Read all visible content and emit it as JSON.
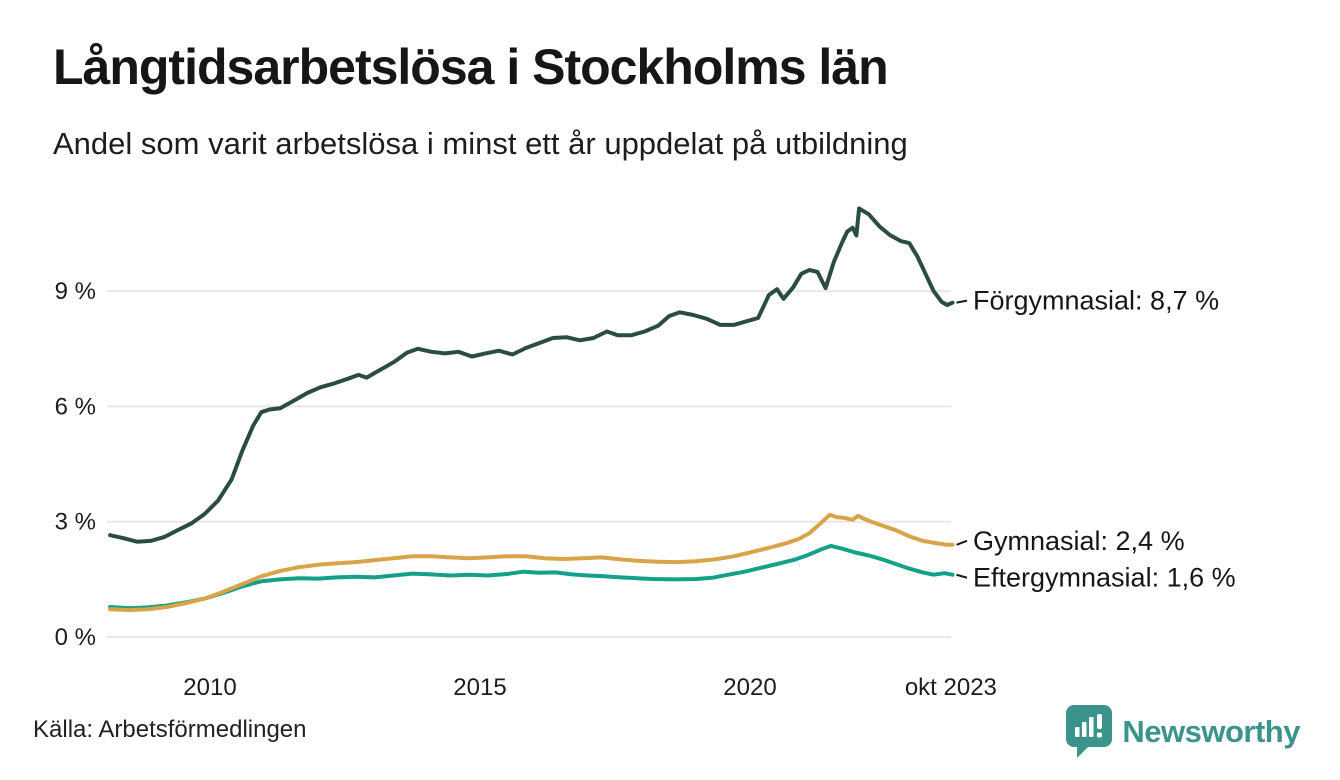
{
  "header": {
    "title": "Långtidsarbetslösa i Stockholms län",
    "subtitle": "Andel som varit arbetslösa i minst ett år uppdelat på utbildning"
  },
  "footer": {
    "source": "Källa: Arbetsförmedlingen",
    "logo_text": "Newsworthy"
  },
  "colors": {
    "background": "#ffffff",
    "text": "#1a1a1a",
    "grid": "#e8e8e8",
    "brand_teal": "#3b948b",
    "series_forgymnasial": "#2a4c45",
    "series_gymnasial": "#d7a44a",
    "series_eftergymnasial": "#14a189"
  },
  "chart_data": {
    "type": "line",
    "title": "Långtidsarbetslösa i Stockholms län",
    "subtitle": "Andel som varit arbetslösa i minst ett år uppdelat på utbildning",
    "grid": true,
    "legend_position": "end-labels-right",
    "x_axis": {
      "unit": "year",
      "range": [
        2008.15,
        2023.75
      ],
      "ticks": [
        {
          "label": "2010",
          "year": 2010
        },
        {
          "label": "2015",
          "year": 2015
        },
        {
          "label": "2020",
          "year": 2020
        },
        {
          "label": "okt 2023",
          "year": 2023.72
        }
      ]
    },
    "y_axis": {
      "unit": "%",
      "range": [
        0,
        11.6
      ],
      "ticks": [
        {
          "label": "0 %",
          "value": 0
        },
        {
          "label": "3 %",
          "value": 3
        },
        {
          "label": "6 %",
          "value": 6
        },
        {
          "label": "9 %",
          "value": 9
        }
      ]
    },
    "series": [
      {
        "name": "Eftergymnasial",
        "end_label": "Eftergymnasial: 1,6 %",
        "end_value": "1,6 %",
        "color": "#14a189",
        "points": [
          [
            2008.15,
            0.78
          ],
          [
            2008.5,
            0.75
          ],
          [
            2008.85,
            0.77
          ],
          [
            2009.2,
            0.82
          ],
          [
            2009.55,
            0.9
          ],
          [
            2009.9,
            1.0
          ],
          [
            2010.25,
            1.15
          ],
          [
            2010.6,
            1.32
          ],
          [
            2010.95,
            1.45
          ],
          [
            2011.3,
            1.5
          ],
          [
            2011.65,
            1.53
          ],
          [
            2012.0,
            1.52
          ],
          [
            2012.35,
            1.55
          ],
          [
            2012.7,
            1.57
          ],
          [
            2013.05,
            1.55
          ],
          [
            2013.4,
            1.6
          ],
          [
            2013.75,
            1.65
          ],
          [
            2014.1,
            1.63
          ],
          [
            2014.45,
            1.6
          ],
          [
            2014.8,
            1.62
          ],
          [
            2015.15,
            1.6
          ],
          [
            2015.5,
            1.64
          ],
          [
            2015.8,
            1.7
          ],
          [
            2016.1,
            1.67
          ],
          [
            2016.4,
            1.68
          ],
          [
            2016.7,
            1.63
          ],
          [
            2017.0,
            1.6
          ],
          [
            2017.3,
            1.58
          ],
          [
            2017.6,
            1.55
          ],
          [
            2017.9,
            1.53
          ],
          [
            2018.2,
            1.51
          ],
          [
            2018.6,
            1.5
          ],
          [
            2019.0,
            1.51
          ],
          [
            2019.3,
            1.54
          ],
          [
            2019.6,
            1.62
          ],
          [
            2019.9,
            1.7
          ],
          [
            2020.2,
            1.8
          ],
          [
            2020.5,
            1.9
          ],
          [
            2020.8,
            2.0
          ],
          [
            2021.05,
            2.12
          ],
          [
            2021.3,
            2.27
          ],
          [
            2021.5,
            2.37
          ],
          [
            2021.7,
            2.3
          ],
          [
            2021.95,
            2.2
          ],
          [
            2022.2,
            2.12
          ],
          [
            2022.45,
            2.02
          ],
          [
            2022.7,
            1.9
          ],
          [
            2022.95,
            1.78
          ],
          [
            2023.2,
            1.68
          ],
          [
            2023.4,
            1.62
          ],
          [
            2023.6,
            1.66
          ],
          [
            2023.75,
            1.62
          ]
        ]
      },
      {
        "name": "Gymnasial",
        "end_label": "Gymnasial: 2,4 %",
        "end_value": "2,4 %",
        "color": "#d7a44a",
        "points": [
          [
            2008.15,
            0.72
          ],
          [
            2008.5,
            0.7
          ],
          [
            2008.85,
            0.72
          ],
          [
            2009.2,
            0.78
          ],
          [
            2009.55,
            0.88
          ],
          [
            2009.9,
            1.0
          ],
          [
            2010.25,
            1.18
          ],
          [
            2010.6,
            1.38
          ],
          [
            2010.95,
            1.58
          ],
          [
            2011.3,
            1.72
          ],
          [
            2011.65,
            1.82
          ],
          [
            2012.0,
            1.88
          ],
          [
            2012.35,
            1.92
          ],
          [
            2012.7,
            1.95
          ],
          [
            2013.05,
            2.0
          ],
          [
            2013.4,
            2.05
          ],
          [
            2013.75,
            2.1
          ],
          [
            2014.1,
            2.1
          ],
          [
            2014.45,
            2.07
          ],
          [
            2014.8,
            2.05
          ],
          [
            2015.15,
            2.07
          ],
          [
            2015.5,
            2.1
          ],
          [
            2015.85,
            2.1
          ],
          [
            2016.2,
            2.05
          ],
          [
            2016.55,
            2.03
          ],
          [
            2016.9,
            2.05
          ],
          [
            2017.25,
            2.07
          ],
          [
            2017.6,
            2.02
          ],
          [
            2017.95,
            1.98
          ],
          [
            2018.3,
            1.96
          ],
          [
            2018.65,
            1.95
          ],
          [
            2019.0,
            1.97
          ],
          [
            2019.35,
            2.02
          ],
          [
            2019.7,
            2.1
          ],
          [
            2020.0,
            2.2
          ],
          [
            2020.35,
            2.32
          ],
          [
            2020.7,
            2.45
          ],
          [
            2020.9,
            2.55
          ],
          [
            2021.1,
            2.7
          ],
          [
            2021.3,
            2.95
          ],
          [
            2021.48,
            3.18
          ],
          [
            2021.6,
            3.12
          ],
          [
            2021.75,
            3.1
          ],
          [
            2021.9,
            3.05
          ],
          [
            2022.0,
            3.15
          ],
          [
            2022.2,
            3.02
          ],
          [
            2022.45,
            2.9
          ],
          [
            2022.7,
            2.78
          ],
          [
            2022.95,
            2.62
          ],
          [
            2023.2,
            2.5
          ],
          [
            2023.45,
            2.44
          ],
          [
            2023.65,
            2.4
          ],
          [
            2023.75,
            2.4
          ]
        ]
      },
      {
        "name": "Förgymnasial",
        "end_label": "Förgymnasial: 8,7 %",
        "end_value": "8,7 %",
        "color": "#2a4c45",
        "points": [
          [
            2008.15,
            2.65
          ],
          [
            2008.4,
            2.57
          ],
          [
            2008.65,
            2.48
          ],
          [
            2008.9,
            2.5
          ],
          [
            2009.15,
            2.6
          ],
          [
            2009.4,
            2.78
          ],
          [
            2009.65,
            2.95
          ],
          [
            2009.9,
            3.2
          ],
          [
            2010.15,
            3.55
          ],
          [
            2010.4,
            4.1
          ],
          [
            2010.6,
            4.85
          ],
          [
            2010.8,
            5.5
          ],
          [
            2010.95,
            5.85
          ],
          [
            2011.1,
            5.92
          ],
          [
            2011.3,
            5.95
          ],
          [
            2011.55,
            6.15
          ],
          [
            2011.8,
            6.35
          ],
          [
            2012.05,
            6.5
          ],
          [
            2012.3,
            6.6
          ],
          [
            2012.55,
            6.72
          ],
          [
            2012.75,
            6.82
          ],
          [
            2012.9,
            6.75
          ],
          [
            2013.15,
            6.95
          ],
          [
            2013.4,
            7.15
          ],
          [
            2013.65,
            7.4
          ],
          [
            2013.85,
            7.5
          ],
          [
            2014.1,
            7.42
          ],
          [
            2014.35,
            7.38
          ],
          [
            2014.6,
            7.42
          ],
          [
            2014.85,
            7.3
          ],
          [
            2015.1,
            7.38
          ],
          [
            2015.35,
            7.45
          ],
          [
            2015.6,
            7.35
          ],
          [
            2015.85,
            7.52
          ],
          [
            2016.1,
            7.65
          ],
          [
            2016.35,
            7.78
          ],
          [
            2016.6,
            7.8
          ],
          [
            2016.85,
            7.72
          ],
          [
            2017.1,
            7.78
          ],
          [
            2017.35,
            7.95
          ],
          [
            2017.55,
            7.85
          ],
          [
            2017.8,
            7.85
          ],
          [
            2018.05,
            7.95
          ],
          [
            2018.3,
            8.1
          ],
          [
            2018.5,
            8.35
          ],
          [
            2018.7,
            8.45
          ],
          [
            2018.95,
            8.38
          ],
          [
            2019.2,
            8.28
          ],
          [
            2019.45,
            8.12
          ],
          [
            2019.7,
            8.12
          ],
          [
            2019.95,
            8.22
          ],
          [
            2020.15,
            8.3
          ],
          [
            2020.35,
            8.9
          ],
          [
            2020.5,
            9.05
          ],
          [
            2020.62,
            8.8
          ],
          [
            2020.8,
            9.1
          ],
          [
            2020.95,
            9.45
          ],
          [
            2021.1,
            9.55
          ],
          [
            2021.25,
            9.5
          ],
          [
            2021.4,
            9.08
          ],
          [
            2021.55,
            9.75
          ],
          [
            2021.7,
            10.25
          ],
          [
            2021.8,
            10.55
          ],
          [
            2021.9,
            10.65
          ],
          [
            2021.97,
            10.45
          ],
          [
            2022.02,
            11.15
          ],
          [
            2022.2,
            11.0
          ],
          [
            2022.4,
            10.68
          ],
          [
            2022.6,
            10.45
          ],
          [
            2022.8,
            10.3
          ],
          [
            2022.95,
            10.25
          ],
          [
            2023.1,
            9.9
          ],
          [
            2023.25,
            9.45
          ],
          [
            2023.4,
            9.0
          ],
          [
            2023.55,
            8.72
          ],
          [
            2023.65,
            8.64
          ],
          [
            2023.75,
            8.7
          ]
        ]
      }
    ]
  }
}
